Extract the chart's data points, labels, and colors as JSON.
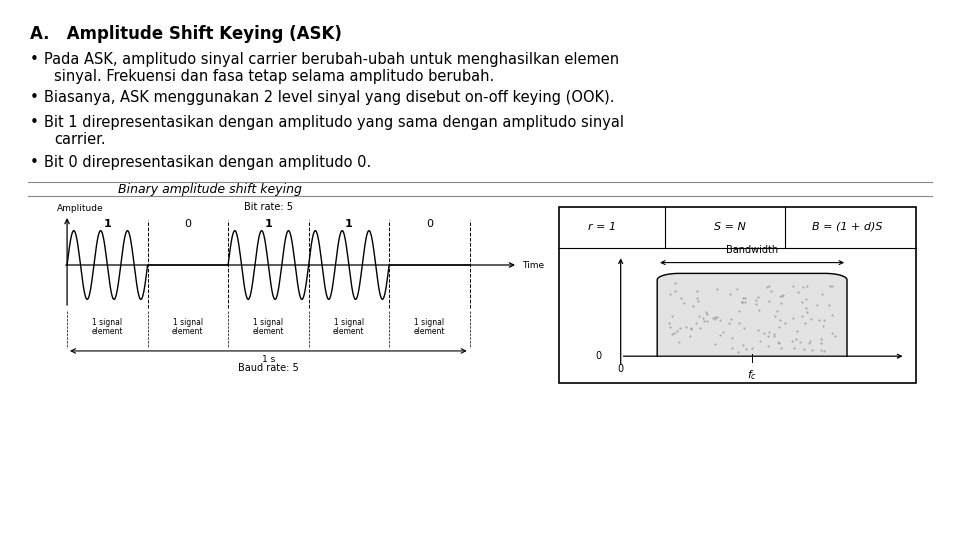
{
  "background_color": "#ffffff",
  "title": "A.   Amplitude Shift Keying (ASK)",
  "bullet1_line1": "Pada ASK, amplitudo sinyal carrier berubah-ubah untuk menghasilkan elemen",
  "bullet1_line2": "sinyal. Frekuensi dan fasa tetap selama amplitudo berubah.",
  "bullet2": "Biasanya, ASK menggunakan 2 level sinyal yang disebut on-off keying (OOK).",
  "bullet3_line1": "Bit 1 direpresentasikan dengan amplitudo yang sama dengan amplitudo sinyal",
  "bullet3_line2": "carrier.",
  "bullet4": "Bit 0 direpresentasikan dengan amplitudo 0.",
  "diagram_title": "Binary amplitude shift keying",
  "bit_labels": [
    "1",
    "0",
    "1",
    "1",
    "0"
  ],
  "xlabel_amplitude": "Amplitude",
  "xlabel_time": "Time",
  "xlabel_baud": "Baud rate: 5",
  "xlabel_1s": "1 s",
  "bit_rate_label": "Bit rate: 5",
  "formula_r": "r = 1",
  "formula_s": "S = N",
  "formula_b": "B = (1 + d)S",
  "bandwidth_label": "Bandwidth",
  "zero_y": "0",
  "zero_x": "0",
  "fc_label": "$f_c$"
}
